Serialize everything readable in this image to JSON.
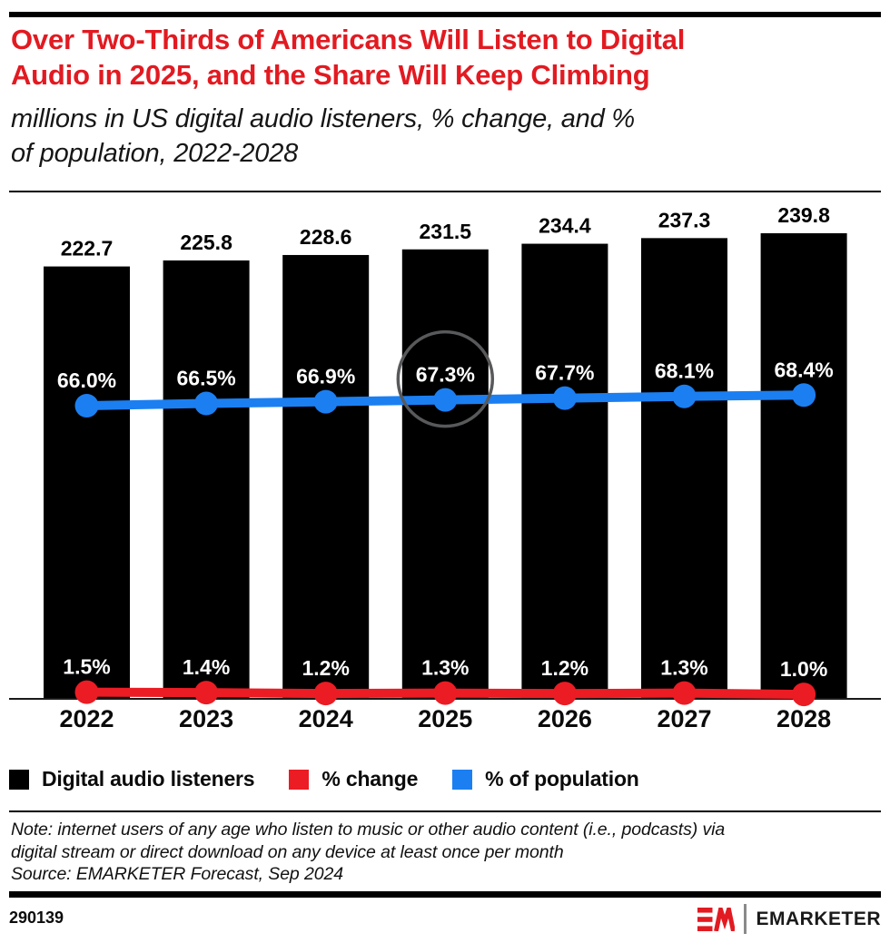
{
  "header": {
    "title": "Over Two-Thirds of Americans Will Listen to Digital Audio in 2025, and the Share Will Keep Climbing",
    "title_lines": [
      "Over Two-Thirds of Americans Will Listen to Digital",
      "Audio in 2025, and the Share Will Keep Climbing"
    ],
    "subtitle": "millions in US digital audio listeners, % change, and % of population, 2022-2028",
    "subtitle_lines": [
      "millions in US digital audio listeners, % change, and %",
      "of population, 2022-2028"
    ]
  },
  "chart_data": {
    "type": "combo-bar-line",
    "title": "Over Two-Thirds of Americans Will Listen to Digital Audio in 2025, and the Share Will Keep Climbing",
    "subtitle": "millions in US digital audio listeners, % change, and % of population, 2022-2028",
    "categories": [
      "2022",
      "2023",
      "2024",
      "2025",
      "2026",
      "2027",
      "2028"
    ],
    "series": [
      {
        "name": "Digital audio listeners",
        "type": "bar",
        "unit": "millions",
        "color": "#000000",
        "values": [
          222.7,
          225.8,
          228.6,
          231.5,
          234.4,
          237.3,
          239.8
        ],
        "labels": [
          "222.7",
          "225.8",
          "228.6",
          "231.5",
          "234.4",
          "237.3",
          "239.8"
        ]
      },
      {
        "name": "% change",
        "type": "line",
        "unit": "percent",
        "color": "#eb1c23",
        "values": [
          1.5,
          1.4,
          1.2,
          1.3,
          1.2,
          1.3,
          1.0
        ],
        "labels": [
          "1.5%",
          "1.4%",
          "1.2%",
          "1.3%",
          "1.2%",
          "1.3%",
          "1.0%"
        ]
      },
      {
        "name": "% of population",
        "type": "line",
        "unit": "percent",
        "color": "#1b7ff2",
        "values": [
          66.0,
          66.5,
          66.9,
          67.3,
          67.7,
          68.1,
          68.4
        ],
        "labels": [
          "66.0%",
          "66.5%",
          "66.9%",
          "67.3%",
          "67.7%",
          "68.1%",
          "68.4%"
        ]
      }
    ],
    "highlight": {
      "series": "% of population",
      "category": "2025",
      "label": "67.3%",
      "color": "#58595b"
    },
    "legend_position": "bottom",
    "grid": false,
    "y_axis_visible": false,
    "xlabel": "",
    "ylabel": ""
  },
  "footer": {
    "note": "Note: internet users of any age who listen to music or other audio content (i.e., podcasts) via digital stream or direct download on any device at least once per month",
    "note_lines": [
      "Note: internet users of any age who listen to music or other audio content (i.e., podcasts) via",
      "digital stream or direct download on any device at least once per month"
    ],
    "source": "Source: EMARKETER Forecast, Sep 2024",
    "chart_id": "290139",
    "brand": "EMARKETER"
  },
  "colors": {
    "title_red": "#e21a21",
    "series_red": "#eb1c23",
    "series_blue": "#1b7ff2",
    "series_black": "#000000",
    "highlight_gray": "#58595b"
  }
}
